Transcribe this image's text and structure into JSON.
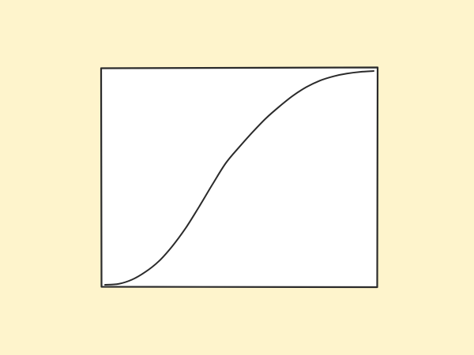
{
  "colors": {
    "background": "#fef4cc",
    "panel": "#ffffff",
    "stroke": "#2b2b2b"
  },
  "chart_data": {
    "type": "line",
    "title": "",
    "xlabel": "",
    "ylabel": "",
    "xlim": [
      0,
      1
    ],
    "ylim": [
      0,
      1
    ],
    "grid": false,
    "legend": "none",
    "series": [
      {
        "x": [
          0,
          0.05,
          0.1,
          0.15,
          0.2,
          0.25,
          0.3,
          0.35,
          0.4,
          0.45,
          0.5,
          0.55,
          0.6,
          0.65,
          0.7,
          0.75,
          0.8,
          0.85,
          0.9,
          0.95,
          1
        ],
        "values": [
          0,
          0.004,
          0.024,
          0.06,
          0.11,
          0.18,
          0.265,
          0.365,
          0.47,
          0.57,
          0.645,
          0.715,
          0.78,
          0.835,
          0.885,
          0.925,
          0.955,
          0.975,
          0.988,
          0.996,
          1
        ]
      }
    ]
  }
}
